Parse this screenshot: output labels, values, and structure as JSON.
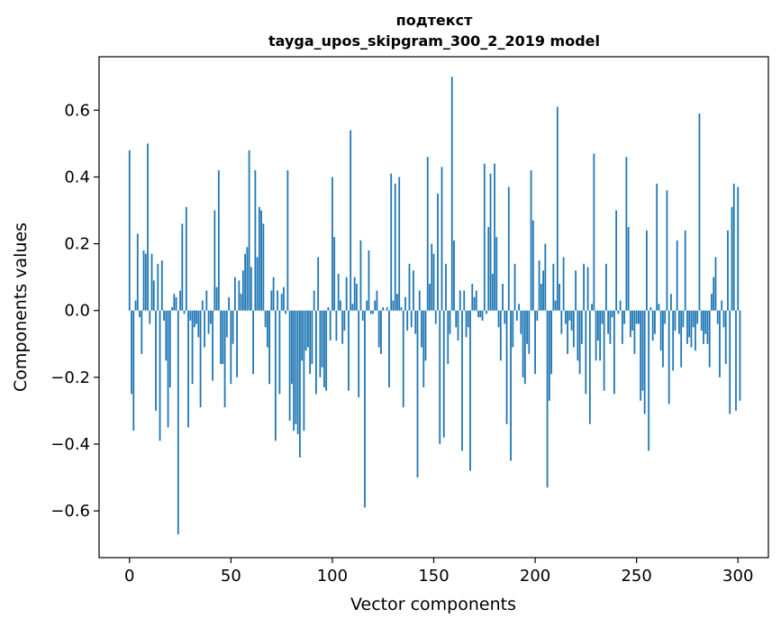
{
  "chart_data": {
    "type": "bar",
    "title_line1": "подтекст",
    "title_line2": "tayga_upos_skipgram_300_2_2019 model",
    "xlabel": "Vector components",
    "ylabel": "Components values",
    "xlim": [
      -15,
      315
    ],
    "ylim": [
      -0.74,
      0.76
    ],
    "xticks": [
      0,
      50,
      100,
      150,
      200,
      250,
      300
    ],
    "xtick_labels": [
      "0",
      "50",
      "100",
      "150",
      "200",
      "250",
      "300"
    ],
    "yticks": [
      -0.6,
      -0.4,
      -0.2,
      0.0,
      0.2,
      0.4,
      0.6
    ],
    "ytick_labels": [
      "−0.6",
      "−0.4",
      "−0.2",
      "0.0",
      "0.2",
      "0.4",
      "0.6"
    ],
    "bar_color": "#1f77b4",
    "grid": false,
    "values": [
      0.48,
      -0.25,
      -0.36,
      0.03,
      0.23,
      -0.02,
      -0.13,
      0.18,
      0.17,
      0.5,
      -0.04,
      0.17,
      0.09,
      -0.3,
      0.14,
      -0.39,
      0.15,
      -0.03,
      -0.15,
      -0.35,
      -0.23,
      0.01,
      0.05,
      0.04,
      -0.67,
      0.06,
      0.26,
      -0.01,
      0.31,
      -0.35,
      -0.03,
      -0.22,
      -0.05,
      -0.04,
      -0.08,
      -0.29,
      0.03,
      -0.11,
      0.06,
      -0.07,
      -0.04,
      -0.21,
      0.3,
      0.07,
      0.42,
      -0.16,
      -0.16,
      -0.29,
      -0.08,
      0.04,
      -0.22,
      -0.1,
      0.1,
      -0.2,
      0.09,
      0.05,
      0.12,
      0.17,
      0.19,
      0.48,
      0.13,
      -0.19,
      0.42,
      0.16,
      0.31,
      0.3,
      0.26,
      -0.05,
      -0.11,
      -0.22,
      0.06,
      0.1,
      -0.39,
      0.06,
      -0.25,
      0.05,
      0.07,
      -0.01,
      0.42,
      -0.33,
      -0.22,
      -0.36,
      -0.34,
      -0.37,
      -0.44,
      -0.15,
      -0.36,
      -0.12,
      -0.11,
      -0.19,
      -0.16,
      0.06,
      -0.25,
      0.16,
      -0.2,
      -0.17,
      -0.23,
      -0.24,
      0.01,
      -0.09,
      0.4,
      0.22,
      -0.09,
      0.11,
      0.03,
      -0.1,
      -0.06,
      0.1,
      -0.24,
      0.54,
      0.02,
      0.1,
      0.08,
      -0.26,
      0.21,
      -0.03,
      -0.59,
      0.03,
      0.18,
      -0.01,
      -0.01,
      0.03,
      0.06,
      -0.11,
      -0.13,
      0.01,
      0.0,
      0.01,
      -0.23,
      0.41,
      0.03,
      0.38,
      0.05,
      0.4,
      0.01,
      -0.29,
      0.04,
      -0.06,
      0.14,
      -0.05,
      0.12,
      -0.07,
      -0.5,
      0.06,
      -0.11,
      -0.23,
      -0.15,
      0.46,
      0.08,
      0.2,
      0.17,
      -0.04,
      0.35,
      -0.4,
      0.43,
      -0.38,
      0.14,
      -0.16,
      -0.07,
      0.7,
      0.21,
      -0.05,
      -0.09,
      0.06,
      -0.42,
      0.06,
      -0.08,
      -0.05,
      -0.48,
      0.08,
      0.04,
      0.06,
      -0.02,
      -0.02,
      -0.03,
      0.44,
      -0.01,
      0.25,
      0.41,
      0.11,
      0.44,
      0.22,
      -0.05,
      -0.15,
      0.08,
      -0.04,
      -0.34,
      0.37,
      -0.45,
      -0.11,
      0.14,
      -0.03,
      0.02,
      -0.07,
      -0.2,
      -0.22,
      -0.1,
      -0.13,
      0.42,
      0.27,
      -0.19,
      -0.03,
      0.15,
      0.08,
      0.12,
      0.2,
      -0.53,
      -0.27,
      -0.19,
      0.14,
      0.03,
      0.61,
      0.08,
      -0.07,
      0.16,
      -0.04,
      -0.13,
      -0.03,
      -0.06,
      -0.11,
      0.12,
      -0.15,
      -0.19,
      -0.1,
      0.14,
      -0.25,
      0.13,
      -0.34,
      0.02,
      0.47,
      -0.15,
      -0.09,
      -0.15,
      -0.04,
      -0.24,
      0.14,
      -0.07,
      -0.1,
      -0.02,
      -0.25,
      0.3,
      -0.01,
      0.03,
      -0.1,
      -0.04,
      0.46,
      0.25,
      -0.08,
      -0.06,
      -0.13,
      -0.04,
      -0.04,
      -0.27,
      -0.24,
      -0.31,
      0.24,
      -0.42,
      0.01,
      -0.09,
      -0.07,
      0.38,
      0.02,
      -0.12,
      -0.17,
      -0.04,
      0.36,
      -0.28,
      0.05,
      -0.18,
      -0.06,
      0.21,
      -0.07,
      -0.17,
      -0.05,
      0.24,
      -0.1,
      -0.08,
      -0.11,
      -0.05,
      -0.12,
      -0.04,
      0.59,
      -0.06,
      -0.1,
      -0.07,
      -0.1,
      -0.17,
      0.05,
      0.1,
      0.16,
      -0.04,
      -0.2,
      0.03,
      -0.05,
      -0.16,
      0.24,
      -0.31,
      0.31,
      0.38,
      -0.3,
      0.37,
      -0.27
    ]
  }
}
